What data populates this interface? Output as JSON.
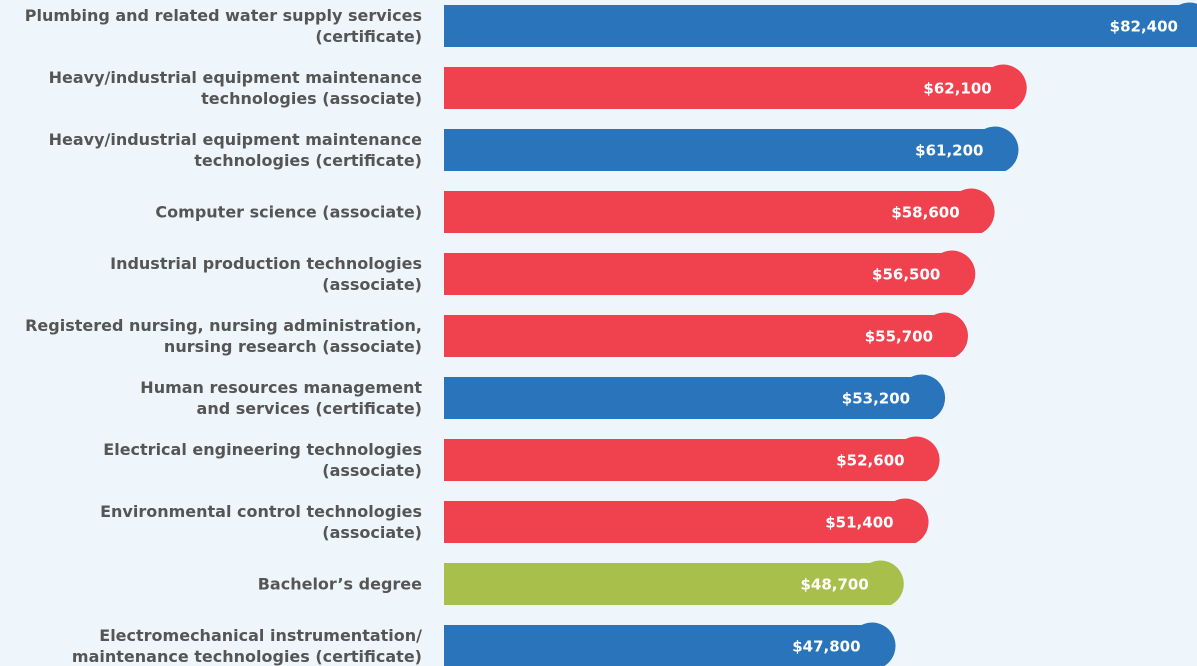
{
  "chart_data": {
    "type": "bar",
    "orientation": "horizontal",
    "categories": [
      "Plumbing and related water supply services\n(certificate)",
      "Heavy/industrial equipment maintenance\ntechnologies (associate)",
      "Heavy/industrial equipment maintenance\ntechnologies (certificate)",
      "Computer science (associate)",
      "Industrial production technologies\n(associate)",
      "Registered nursing, nursing administration,\nnursing research (associate)",
      "Human resources management\nand services (certificate)",
      "Electrical engineering technologies\n(associate)",
      "Environmental control technologies\n(associate)",
      "Bachelor’s degree",
      "Electromechanical instrumentation/\nmaintenance technologies (certificate)"
    ],
    "values": [
      82400,
      62100,
      61200,
      58600,
      56500,
      55700,
      53200,
      52600,
      51400,
      48700,
      47800
    ],
    "value_labels": [
      "$82,400",
      "$62,100",
      "$61,200",
      "$58,600",
      "$56,500",
      "$55,700",
      "$53,200",
      "$52,600",
      "$51,400",
      "$48,700",
      "$47,800"
    ],
    "colors": [
      "#2a74bb",
      "#f0414f",
      "#2a74bb",
      "#f0414f",
      "#f0414f",
      "#f0414f",
      "#2a74bb",
      "#f0414f",
      "#f0414f",
      "#a8bf4b",
      "#2a74bb"
    ]
  }
}
